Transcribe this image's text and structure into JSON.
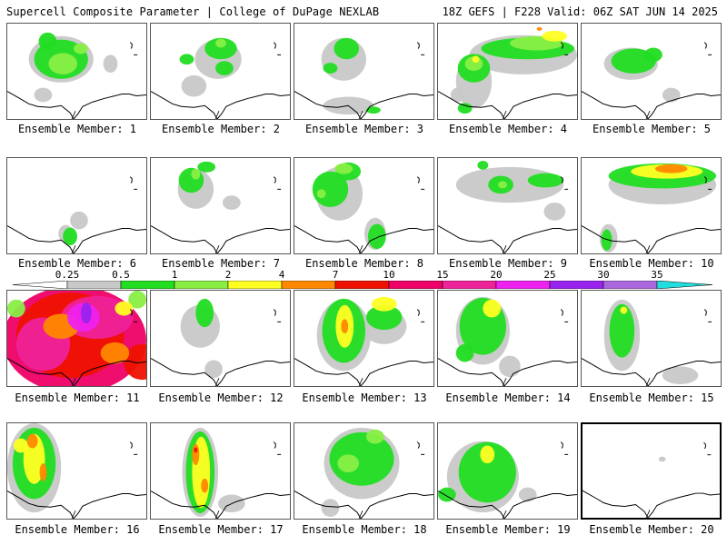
{
  "header": {
    "title": "Supercell Composite Parameter | College of DuPage NEXLAB",
    "run_info": "18Z GEFS | F228 Valid: 06Z SAT JUN 14 2025"
  },
  "legend": {
    "ticks": [
      "0.25",
      "0.5",
      "1",
      "2",
      "4",
      "7",
      "10",
      "15",
      "20",
      "25",
      "30",
      "35"
    ],
    "colors": [
      "#c8c8c8",
      "#22dd22",
      "#88ee44",
      "#ffff22",
      "#ff8800",
      "#ee1100",
      "#ee0066",
      "#ee2299",
      "#ee22ee",
      "#9922ee",
      "#aa66dd",
      "#22dddd"
    ]
  },
  "members": [
    {
      "label": "Ensemble Member: 1"
    },
    {
      "label": "Ensemble Member: 2"
    },
    {
      "label": "Ensemble Member: 3"
    },
    {
      "label": "Ensemble Member: 4"
    },
    {
      "label": "Ensemble Member: 5"
    },
    {
      "label": "Ensemble Member: 6"
    },
    {
      "label": "Ensemble Member: 7"
    },
    {
      "label": "Ensemble Member: 8"
    },
    {
      "label": "Ensemble Member: 9"
    },
    {
      "label": "Ensemble Member: 10"
    },
    {
      "label": "Ensemble Member: 11"
    },
    {
      "label": "Ensemble Member: 12"
    },
    {
      "label": "Ensemble Member: 13"
    },
    {
      "label": "Ensemble Member: 14"
    },
    {
      "label": "Ensemble Member: 15"
    },
    {
      "label": "Ensemble Member: 16"
    },
    {
      "label": "Ensemble Member: 17"
    },
    {
      "label": "Ensemble Member: 18"
    },
    {
      "label": "Ensemble Member: 19"
    },
    {
      "label": "Ensemble Member: 20"
    }
  ]
}
